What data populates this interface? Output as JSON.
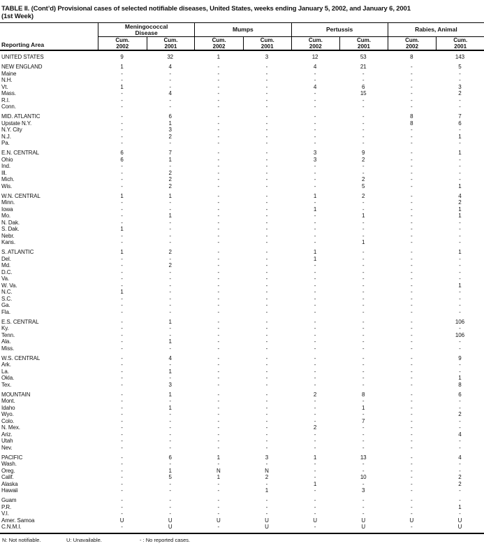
{
  "title": {
    "line1": "TABLE II. (Cont’d) Provisional cases of selected notifiable diseases, United States, weeks ending January 5, 2002, and January 6, 2001",
    "line2": "(1st Week)"
  },
  "table": {
    "reporting_area_label": "Reporting Area",
    "column_groups": [
      {
        "label_lines": [
          "Meningococcal",
          "Disease"
        ],
        "subcols": [
          [
            "Cum.",
            "2002"
          ],
          [
            "Cum.",
            "2001"
          ]
        ]
      },
      {
        "label_lines": [
          "Mumps"
        ],
        "subcols": [
          [
            "Cum.",
            "2002"
          ],
          [
            "Cum.",
            "2001"
          ]
        ]
      },
      {
        "label_lines": [
          "Pertussis"
        ],
        "subcols": [
          [
            "Cum.",
            "2002"
          ],
          [
            "Cum.",
            "2001"
          ]
        ]
      },
      {
        "label_lines": [
          "Rabies, Animal"
        ],
        "subcols": [
          [
            "Cum.",
            "2002"
          ],
          [
            "Cum.",
            "2001"
          ]
        ]
      }
    ],
    "sections": [
      {
        "rows": [
          {
            "area": "UNITED STATES",
            "values": [
              "9",
              "32",
              "1",
              "3",
              "12",
              "53",
              "8",
              "143"
            ]
          }
        ]
      },
      {
        "rows": [
          {
            "area": "NEW ENGLAND",
            "values": [
              "1",
              "4",
              "-",
              "-",
              "4",
              "21",
              "-",
              "5"
            ]
          },
          {
            "area": "Maine",
            "values": [
              "-",
              "-",
              "-",
              "-",
              "-",
              "-",
              "-",
              "-"
            ]
          },
          {
            "area": "N.H.",
            "values": [
              "-",
              "-",
              "-",
              "-",
              "-",
              "-",
              "-",
              "-"
            ]
          },
          {
            "area": "Vt.",
            "values": [
              "1",
              "-",
              "-",
              "-",
              "4",
              "6",
              "-",
              "3"
            ]
          },
          {
            "area": "Mass.",
            "values": [
              "-",
              "4",
              "-",
              "-",
              "-",
              "15",
              "-",
              "2"
            ]
          },
          {
            "area": "R.I.",
            "values": [
              "-",
              "-",
              "-",
              "-",
              "-",
              "-",
              "-",
              "-"
            ]
          },
          {
            "area": "Conn.",
            "values": [
              "-",
              "-",
              "-",
              "-",
              "-",
              "-",
              "-",
              "-"
            ]
          }
        ]
      },
      {
        "rows": [
          {
            "area": "MID. ATLANTIC",
            "values": [
              "-",
              "6",
              "-",
              "-",
              "-",
              "-",
              "8",
              "7"
            ]
          },
          {
            "area": "Upstate N.Y.",
            "values": [
              "-",
              "1",
              "-",
              "-",
              "-",
              "-",
              "8",
              "6"
            ]
          },
          {
            "area": "N.Y. City",
            "values": [
              "-",
              "3",
              "-",
              "-",
              "-",
              "-",
              "-",
              "-"
            ]
          },
          {
            "area": "N.J.",
            "values": [
              "-",
              "2",
              "-",
              "-",
              "-",
              "-",
              "-",
              "1"
            ]
          },
          {
            "area": "Pa.",
            "values": [
              "-",
              "-",
              "-",
              "-",
              "-",
              "-",
              "-",
              "-"
            ]
          }
        ]
      },
      {
        "rows": [
          {
            "area": "E.N. CENTRAL",
            "values": [
              "6",
              "7",
              "-",
              "-",
              "3",
              "9",
              "-",
              "1"
            ]
          },
          {
            "area": "Ohio",
            "values": [
              "6",
              "1",
              "-",
              "-",
              "3",
              "2",
              "-",
              "-"
            ]
          },
          {
            "area": "Ind.",
            "values": [
              "-",
              "-",
              "-",
              "-",
              "-",
              "-",
              "-",
              "-"
            ]
          },
          {
            "area": "Ill.",
            "values": [
              "-",
              "2",
              "-",
              "-",
              "-",
              "-",
              "-",
              "-"
            ]
          },
          {
            "area": "Mich.",
            "values": [
              "-",
              "2",
              "-",
              "-",
              "-",
              "2",
              "-",
              "-"
            ]
          },
          {
            "area": "Wis.",
            "values": [
              "-",
              "2",
              "-",
              "-",
              "-",
              "5",
              "-",
              "1"
            ]
          }
        ]
      },
      {
        "rows": [
          {
            "area": "W.N. CENTRAL",
            "values": [
              "1",
              "1",
              "-",
              "-",
              "1",
              "2",
              "-",
              "4"
            ]
          },
          {
            "area": "Minn.",
            "values": [
              "-",
              "-",
              "-",
              "-",
              "-",
              "-",
              "-",
              "2"
            ]
          },
          {
            "area": "Iowa",
            "values": [
              "-",
              "-",
              "-",
              "-",
              "1",
              "-",
              "-",
              "1"
            ]
          },
          {
            "area": "Mo.",
            "values": [
              "-",
              "1",
              "-",
              "-",
              "-",
              "1",
              "-",
              "1"
            ]
          },
          {
            "area": "N. Dak.",
            "values": [
              "-",
              "-",
              "-",
              "-",
              "-",
              "-",
              "-",
              "-"
            ]
          },
          {
            "area": "S. Dak.",
            "values": [
              "1",
              "-",
              "-",
              "-",
              "-",
              "-",
              "-",
              "-"
            ]
          },
          {
            "area": "Nebr.",
            "values": [
              "-",
              "-",
              "-",
              "-",
              "-",
              "-",
              "-",
              "-"
            ]
          },
          {
            "area": "Kans.",
            "values": [
              "-",
              "-",
              "-",
              "-",
              "-",
              "1",
              "-",
              "-"
            ]
          }
        ]
      },
      {
        "rows": [
          {
            "area": "S. ATLANTIC",
            "values": [
              "1",
              "2",
              "-",
              "-",
              "1",
              "-",
              "-",
              "1"
            ]
          },
          {
            "area": "Del.",
            "values": [
              "-",
              "-",
              "-",
              "-",
              "1",
              "-",
              "-",
              "-"
            ]
          },
          {
            "area": "Md.",
            "values": [
              "-",
              "2",
              "-",
              "-",
              "-",
              "-",
              "-",
              "-"
            ]
          },
          {
            "area": "D.C.",
            "values": [
              "-",
              "-",
              "-",
              "-",
              "-",
              "-",
              "-",
              "-"
            ]
          },
          {
            "area": "Va.",
            "values": [
              "-",
              "-",
              "-",
              "-",
              "-",
              "-",
              "-",
              "-"
            ]
          },
          {
            "area": "W. Va.",
            "values": [
              "-",
              "-",
              "-",
              "-",
              "-",
              "-",
              "-",
              "1"
            ]
          },
          {
            "area": "N.C.",
            "values": [
              "1",
              "-",
              "-",
              "-",
              "-",
              "-",
              "-",
              "-"
            ]
          },
          {
            "area": "S.C.",
            "values": [
              "-",
              "-",
              "-",
              "-",
              "-",
              "-",
              "-",
              "-"
            ]
          },
          {
            "area": "Ga.",
            "values": [
              "-",
              "-",
              "-",
              "-",
              "-",
              "-",
              "-",
              "-"
            ]
          },
          {
            "area": "Fla.",
            "values": [
              "-",
              "-",
              "-",
              "-",
              "-",
              "-",
              "-",
              "-"
            ]
          }
        ]
      },
      {
        "rows": [
          {
            "area": "E.S. CENTRAL",
            "values": [
              "-",
              "1",
              "-",
              "-",
              "-",
              "-",
              "-",
              "106"
            ]
          },
          {
            "area": "Ky.",
            "values": [
              "-",
              "-",
              "-",
              "-",
              "-",
              "-",
              "-",
              "-"
            ]
          },
          {
            "area": "Tenn.",
            "values": [
              "-",
              "-",
              "-",
              "-",
              "-",
              "-",
              "-",
              "106"
            ]
          },
          {
            "area": "Ala.",
            "values": [
              "-",
              "1",
              "-",
              "-",
              "-",
              "-",
              "-",
              "-"
            ]
          },
          {
            "area": "Miss.",
            "values": [
              "-",
              "-",
              "-",
              "-",
              "-",
              "-",
              "-",
              "-"
            ]
          }
        ]
      },
      {
        "rows": [
          {
            "area": "W.S. CENTRAL",
            "values": [
              "-",
              "4",
              "-",
              "-",
              "-",
              "-",
              "-",
              "9"
            ]
          },
          {
            "area": "Ark.",
            "values": [
              "-",
              "-",
              "-",
              "-",
              "-",
              "-",
              "-",
              "-"
            ]
          },
          {
            "area": "La.",
            "values": [
              "-",
              "1",
              "-",
              "-",
              "-",
              "-",
              "-",
              "-"
            ]
          },
          {
            "area": "Okla.",
            "values": [
              "-",
              "-",
              "-",
              "-",
              "-",
              "-",
              "-",
              "1"
            ]
          },
          {
            "area": "Tex.",
            "values": [
              "-",
              "3",
              "-",
              "-",
              "-",
              "-",
              "-",
              "8"
            ]
          }
        ]
      },
      {
        "rows": [
          {
            "area": "MOUNTAIN",
            "values": [
              "-",
              "1",
              "-",
              "-",
              "2",
              "8",
              "-",
              "6"
            ]
          },
          {
            "area": "Mont.",
            "values": [
              "-",
              "-",
              "-",
              "-",
              "-",
              "-",
              "-",
              "-"
            ]
          },
          {
            "area": "Idaho",
            "values": [
              "-",
              "1",
              "-",
              "-",
              "-",
              "1",
              "-",
              "-"
            ]
          },
          {
            "area": "Wyo.",
            "values": [
              "-",
              "-",
              "-",
              "-",
              "-",
              "-",
              "-",
              "2"
            ]
          },
          {
            "area": "Colo.",
            "values": [
              "-",
              "-",
              "-",
              "-",
              "-",
              "7",
              "-",
              "-"
            ]
          },
          {
            "area": "N. Mex.",
            "values": [
              "-",
              "-",
              "-",
              "-",
              "2",
              "-",
              "-",
              "-"
            ]
          },
          {
            "area": "Ariz.",
            "values": [
              "-",
              "-",
              "-",
              "-",
              "-",
              "-",
              "-",
              "4"
            ]
          },
          {
            "area": "Utah",
            "values": [
              "-",
              "-",
              "-",
              "-",
              "-",
              "-",
              "-",
              "-"
            ]
          },
          {
            "area": "Nev.",
            "values": [
              "-",
              "-",
              "-",
              "-",
              "-",
              "-",
              "-",
              "-"
            ]
          }
        ]
      },
      {
        "rows": [
          {
            "area": "PACIFIC",
            "values": [
              "-",
              "6",
              "1",
              "3",
              "1",
              "13",
              "-",
              "4"
            ]
          },
          {
            "area": "Wash.",
            "values": [
              "-",
              "-",
              "-",
              "-",
              "-",
              "-",
              "-",
              "-"
            ]
          },
          {
            "area": "Oreg.",
            "values": [
              "-",
              "1",
              "N",
              "N",
              "-",
              "-",
              "-",
              "-"
            ]
          },
          {
            "area": "Calif.",
            "values": [
              "-",
              "5",
              "1",
              "2",
              "-",
              "10",
              "-",
              "2"
            ]
          },
          {
            "area": "Alaska",
            "values": [
              "-",
              "-",
              "-",
              "-",
              "1",
              "-",
              "-",
              "2"
            ]
          },
          {
            "area": "Hawaii",
            "values": [
              "-",
              "-",
              "-",
              "1",
              "-",
              "3",
              "-",
              "-"
            ]
          }
        ]
      },
      {
        "rows": [
          {
            "area": "Guam",
            "values": [
              "-",
              "-",
              "-",
              "-",
              "-",
              "-",
              "-",
              "-"
            ]
          },
          {
            "area": "P.R.",
            "values": [
              "-",
              "-",
              "-",
              "-",
              "-",
              "-",
              "-",
              "1"
            ]
          },
          {
            "area": "V.I.",
            "values": [
              "-",
              "-",
              "-",
              "-",
              "-",
              "-",
              "-",
              "-"
            ]
          },
          {
            "area": "Amer. Samoa",
            "values": [
              "U",
              "U",
              "U",
              "U",
              "U",
              "U",
              "U",
              "U"
            ]
          },
          {
            "area": "C.N.M.I.",
            "values": [
              "-",
              "U",
              "-",
              "U",
              "-",
              "U",
              "-",
              "U"
            ]
          }
        ]
      }
    ]
  },
  "footnotes": [
    "N: Not notifiable.",
    "U: Unavailable.",
    "- : No reported cases."
  ]
}
